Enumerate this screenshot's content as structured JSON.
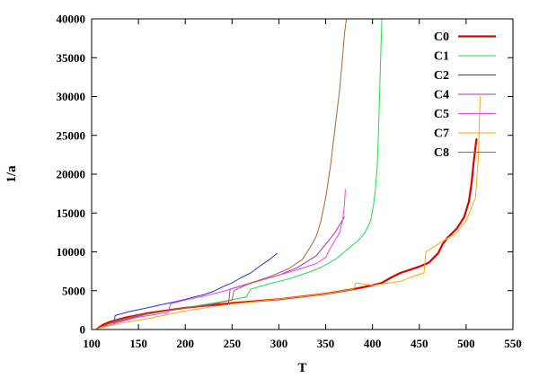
{
  "chart_data": {
    "type": "line",
    "xlabel": "T",
    "ylabel": "1/a",
    "xlim": [
      100,
      550
    ],
    "ylim": [
      0,
      40000
    ],
    "xticks": [
      100,
      150,
      200,
      250,
      300,
      350,
      400,
      450,
      500,
      550
    ],
    "yticks": [
      0,
      5000,
      10000,
      15000,
      20000,
      25000,
      30000,
      35000,
      40000
    ],
    "legend_position": "top-right",
    "series": [
      {
        "name": "C0",
        "color": "#e00000",
        "width": 2.2,
        "points": [
          [
            107,
            200
          ],
          [
            112,
            600
          ],
          [
            120,
            1000
          ],
          [
            135,
            1500
          ],
          [
            160,
            2100
          ],
          [
            200,
            2800
          ],
          [
            250,
            3400
          ],
          [
            300,
            3900
          ],
          [
            350,
            4600
          ],
          [
            380,
            5200
          ],
          [
            400,
            5700
          ],
          [
            410,
            6000
          ],
          [
            420,
            6700
          ],
          [
            430,
            7300
          ],
          [
            440,
            7700
          ],
          [
            450,
            8100
          ],
          [
            460,
            8600
          ],
          [
            470,
            9800
          ],
          [
            475,
            11000
          ],
          [
            480,
            11800
          ],
          [
            490,
            13000
          ],
          [
            498,
            14500
          ],
          [
            503,
            16500
          ],
          [
            506,
            19000
          ],
          [
            508,
            21500
          ],
          [
            510,
            23500
          ],
          [
            511,
            24500
          ]
        ]
      },
      {
        "name": "C1",
        "color": "#22dd44",
        "width": 1,
        "points": [
          [
            107,
            150
          ],
          [
            115,
            600
          ],
          [
            130,
            1200
          ],
          [
            150,
            1800
          ],
          [
            175,
            2300
          ],
          [
            200,
            2800
          ],
          [
            220,
            3200
          ],
          [
            240,
            3600
          ],
          [
            265,
            4200
          ],
          [
            270,
            5200
          ],
          [
            290,
            5900
          ],
          [
            310,
            6500
          ],
          [
            330,
            7300
          ],
          [
            345,
            8000
          ],
          [
            360,
            9000
          ],
          [
            375,
            10500
          ],
          [
            385,
            11500
          ],
          [
            392,
            12500
          ],
          [
            398,
            14000
          ],
          [
            401,
            16000
          ],
          [
            403,
            18000
          ],
          [
            405,
            21000
          ],
          [
            406,
            24000
          ],
          [
            407,
            28000
          ],
          [
            408,
            32000
          ],
          [
            409,
            36000
          ],
          [
            410,
            40000
          ]
        ]
      },
      {
        "name": "C2",
        "color": "#2233dd",
        "width": 1,
        "points": [
          [
            124,
            600
          ],
          [
            125,
            1800
          ],
          [
            140,
            2300
          ],
          [
            160,
            2800
          ],
          [
            175,
            3200
          ],
          [
            190,
            3600
          ],
          [
            200,
            3900
          ],
          [
            210,
            4200
          ],
          [
            220,
            4500
          ],
          [
            230,
            4900
          ],
          [
            240,
            5500
          ],
          [
            250,
            6000
          ],
          [
            260,
            6700
          ],
          [
            270,
            7300
          ],
          [
            280,
            8200
          ],
          [
            290,
            9000
          ],
          [
            298,
            9800
          ]
        ]
      },
      {
        "name": "C4",
        "color": "#aa33aa",
        "width": 1,
        "points": [
          [
            106,
            100
          ],
          [
            120,
            800
          ],
          [
            140,
            1400
          ],
          [
            160,
            2000
          ],
          [
            185,
            2500
          ],
          [
            210,
            2900
          ],
          [
            246,
            3200
          ],
          [
            248,
            5200
          ],
          [
            270,
            6000
          ],
          [
            300,
            7000
          ],
          [
            320,
            8000
          ],
          [
            340,
            9500
          ],
          [
            350,
            11000
          ],
          [
            360,
            12500
          ],
          [
            365,
            13500
          ],
          [
            370,
            14500
          ]
        ]
      },
      {
        "name": "C5",
        "color": "#ee44ee",
        "width": 1,
        "points": [
          [
            108,
            200
          ],
          [
            125,
            800
          ],
          [
            150,
            1600
          ],
          [
            182,
            2200
          ],
          [
            184,
            3300
          ],
          [
            200,
            3800
          ],
          [
            220,
            4300
          ],
          [
            240,
            4900
          ],
          [
            260,
            5600
          ],
          [
            280,
            6300
          ],
          [
            300,
            7000
          ],
          [
            320,
            7700
          ],
          [
            340,
            8500
          ],
          [
            350,
            9300
          ],
          [
            355,
            10500
          ],
          [
            360,
            11500
          ],
          [
            365,
            12500
          ],
          [
            368,
            14000
          ],
          [
            370,
            16000
          ],
          [
            371,
            18000
          ]
        ]
      },
      {
        "name": "C7",
        "color": "#ffaa00",
        "width": 1,
        "points": [
          [
            106,
            100
          ],
          [
            130,
            800
          ],
          [
            160,
            1400
          ],
          [
            200,
            2400
          ],
          [
            250,
            3300
          ],
          [
            300,
            3900
          ],
          [
            350,
            4600
          ],
          [
            380,
            5200
          ],
          [
            382,
            6000
          ],
          [
            400,
            5700
          ],
          [
            430,
            6200
          ],
          [
            440,
            6700
          ],
          [
            455,
            7300
          ],
          [
            457,
            10000
          ],
          [
            470,
            11000
          ],
          [
            490,
            12500
          ],
          [
            500,
            14000
          ],
          [
            510,
            17000
          ],
          [
            513,
            22000
          ],
          [
            515,
            30000
          ]
        ]
      },
      {
        "name": "C8",
        "color": "#aa6633",
        "width": 1,
        "points": [
          [
            105,
            100
          ],
          [
            115,
            600
          ],
          [
            125,
            1100
          ],
          [
            150,
            1800
          ],
          [
            170,
            2200
          ],
          [
            200,
            2800
          ],
          [
            230,
            3300
          ],
          [
            250,
            3800
          ],
          [
            252,
            5000
          ],
          [
            270,
            6000
          ],
          [
            290,
            6800
          ],
          [
            310,
            7800
          ],
          [
            325,
            9000
          ],
          [
            333,
            10500
          ],
          [
            340,
            12000
          ],
          [
            345,
            14000
          ],
          [
            350,
            17000
          ],
          [
            355,
            21000
          ],
          [
            360,
            26000
          ],
          [
            365,
            31000
          ],
          [
            368,
            35000
          ],
          [
            370,
            38000
          ],
          [
            372,
            40000
          ]
        ]
      }
    ]
  }
}
